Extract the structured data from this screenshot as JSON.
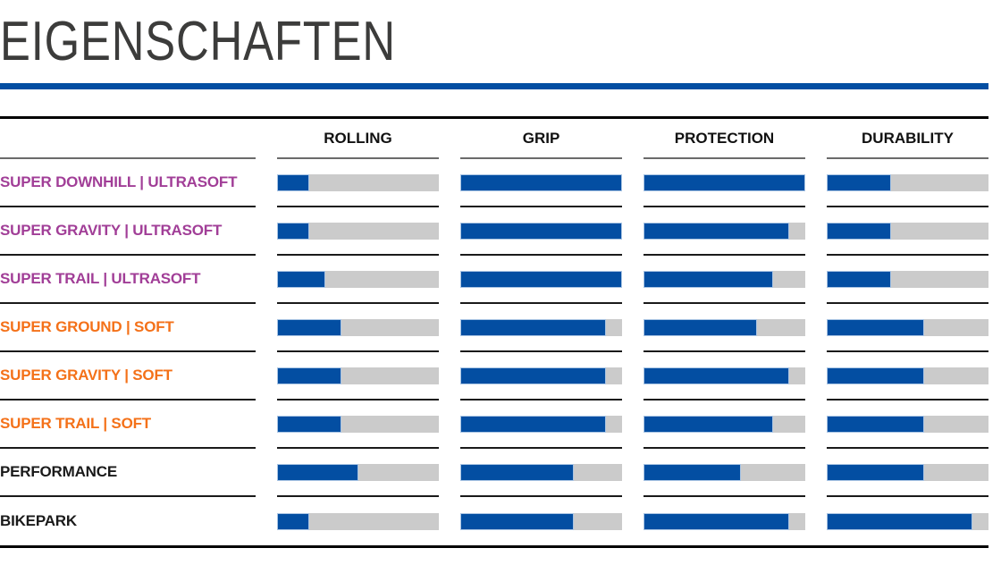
{
  "page": {
    "title": "EIGENSCHAFTEN"
  },
  "colors": {
    "accent_blue": "#034EA2",
    "bar_track_gray": "#CBCBCB",
    "tier_ultrasoft_label": "#A13E97",
    "tier_soft_label": "#F47119",
    "tier_standard_label": "#1A1A1A",
    "title_text": "#3C3C3B"
  },
  "chart_data": {
    "type": "bar",
    "title": "EIGENSCHAFTEN",
    "orientation": "horizontal",
    "value_range": [
      0,
      5
    ],
    "grid": false,
    "legend": false,
    "metrics": [
      "ROLLING",
      "GRIP",
      "PROTECTION",
      "DURABILITY"
    ],
    "rows": [
      {
        "label": "SUPER DOWNHILL | ULTRASOFT",
        "tier": "ultrasoft",
        "values": [
          1,
          5,
          5,
          2
        ]
      },
      {
        "label": "SUPER GRAVITY | ULTRASOFT",
        "tier": "ultrasoft",
        "values": [
          1,
          5,
          4.5,
          2
        ]
      },
      {
        "label": "SUPER TRAIL | ULTRASOFT",
        "tier": "ultrasoft",
        "values": [
          1.5,
          5,
          4,
          2
        ]
      },
      {
        "label": "SUPER GROUND | SOFT",
        "tier": "soft",
        "values": [
          2,
          4.5,
          3.5,
          3
        ]
      },
      {
        "label": "SUPER GRAVITY | SOFT",
        "tier": "soft",
        "values": [
          2,
          4.5,
          4.5,
          3
        ]
      },
      {
        "label": "SUPER TRAIL | SOFT",
        "tier": "soft",
        "values": [
          2,
          4.5,
          4,
          3
        ]
      },
      {
        "label": "PERFORMANCE",
        "tier": "standard",
        "values": [
          2.5,
          3.5,
          3,
          3
        ]
      },
      {
        "label": "BIKEPARK",
        "tier": "standard",
        "values": [
          1,
          3.5,
          4.5,
          4.5
        ]
      }
    ]
  }
}
